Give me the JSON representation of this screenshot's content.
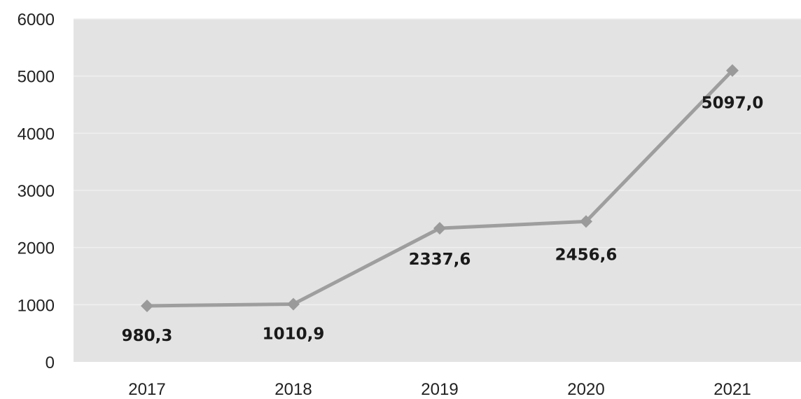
{
  "chart_data": {
    "type": "line",
    "categories": [
      "2017",
      "2018",
      "2019",
      "2020",
      "2021"
    ],
    "series": [
      {
        "values": [
          980.3,
          1010.9,
          2337.6,
          2456.6,
          5097.0
        ],
        "labels": [
          "980,3",
          "1010,9",
          "2337,6",
          "2456,6",
          "5097,0"
        ]
      }
    ],
    "ylim": [
      0,
      6000
    ],
    "yticks": [
      "0",
      "1000",
      "2000",
      "3000",
      "4000",
      "5000",
      "6000"
    ],
    "title": "",
    "xlabel": "",
    "ylabel": "",
    "grid": true,
    "legend": "none",
    "marker": "diamond",
    "colors": {
      "plot_background": "#e3e3e3",
      "gridline": "#f0f0f0",
      "line": "#9e9e9e",
      "marker": "#9a9a9a"
    }
  }
}
